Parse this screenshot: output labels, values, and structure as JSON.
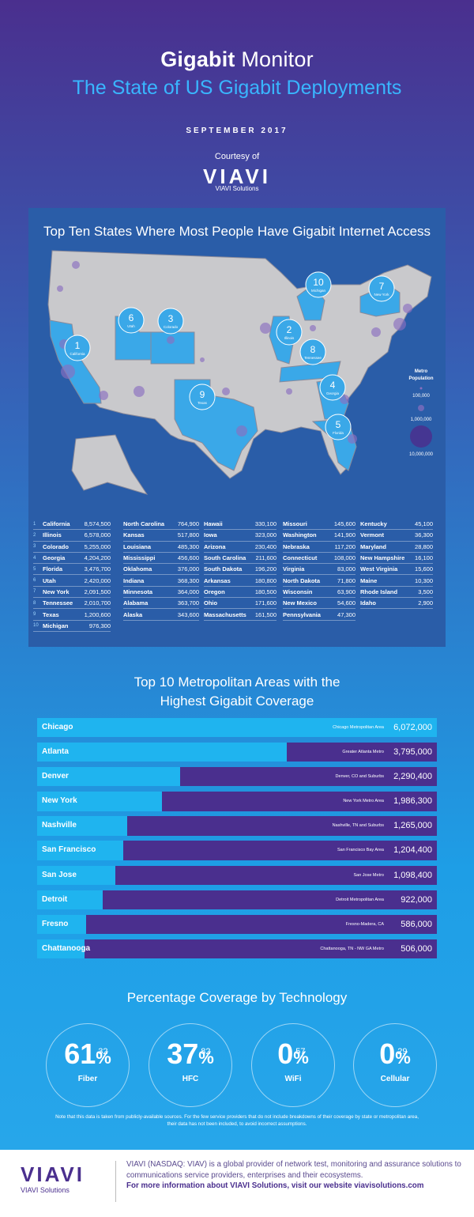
{
  "header": {
    "title_bold": "Gigabit",
    "title_rest": " Monitor",
    "subtitle": "The State of US Gigabit Deployments",
    "date": "SEPTEMBER 2017",
    "courtesy": "Courtesy of",
    "logo": "VIAVI",
    "logo_sub": "VIAVI Solutions"
  },
  "map": {
    "title": "Top Ten States Where Most People Have Gigabit Internet Access",
    "legend": {
      "title1": "Metro",
      "title2": "Population",
      "items": [
        "100,000",
        "1,000,000",
        "10,000,000"
      ]
    },
    "markers": [
      {
        "num": "1",
        "name": "California"
      },
      {
        "num": "2",
        "name": "Illinois"
      },
      {
        "num": "3",
        "name": "Colorado"
      },
      {
        "num": "4",
        "name": "Georgia"
      },
      {
        "num": "5",
        "name": "Florida"
      },
      {
        "num": "6",
        "name": "Utah"
      },
      {
        "num": "7",
        "name": "New York"
      },
      {
        "num": "8",
        "name": "Tennessee"
      },
      {
        "num": "9",
        "name": "Texas"
      },
      {
        "num": "10",
        "name": "Michigan"
      }
    ]
  },
  "state_table": {
    "col1": [
      {
        "n": "1",
        "s": "California",
        "v": "8,574,500"
      },
      {
        "n": "2",
        "s": "Illinois",
        "v": "6,578,000"
      },
      {
        "n": "3",
        "s": "Colorado",
        "v": "5,255,000"
      },
      {
        "n": "4",
        "s": "Georgia",
        "v": "4,204,200"
      },
      {
        "n": "5",
        "s": "Florida",
        "v": "3,476,700"
      },
      {
        "n": "6",
        "s": "Utah",
        "v": "2,420,000"
      },
      {
        "n": "7",
        "s": "New York",
        "v": "2,091,500"
      },
      {
        "n": "8",
        "s": "Tennessee",
        "v": "2,010,700"
      },
      {
        "n": "9",
        "s": "Texas",
        "v": "1,200,600"
      },
      {
        "n": "10",
        "s": "Michigan",
        "v": "976,300"
      }
    ],
    "col2": [
      {
        "s": "North Carolina",
        "v": "764,900"
      },
      {
        "s": "Kansas",
        "v": "517,800"
      },
      {
        "s": "Louisiana",
        "v": "485,300"
      },
      {
        "s": "Mississippi",
        "v": "456,600"
      },
      {
        "s": "Oklahoma",
        "v": "376,000"
      },
      {
        "s": "Indiana",
        "v": "368,300"
      },
      {
        "s": "Minnesota",
        "v": "364,000"
      },
      {
        "s": "Alabama",
        "v": "363,700"
      },
      {
        "s": "Alaska",
        "v": "343,600"
      }
    ],
    "col3": [
      {
        "s": "Hawaii",
        "v": "330,100"
      },
      {
        "s": "Iowa",
        "v": "323,000"
      },
      {
        "s": "Arizona",
        "v": "230,400"
      },
      {
        "s": "South Carolina",
        "v": "211,600"
      },
      {
        "s": "South Dakota",
        "v": "196,200"
      },
      {
        "s": "Arkansas",
        "v": "180,800"
      },
      {
        "s": "Oregon",
        "v": "180,500"
      },
      {
        "s": "Ohio",
        "v": "171,600"
      },
      {
        "s": "Massachusetts",
        "v": "161,500"
      }
    ],
    "col4": [
      {
        "s": "Missouri",
        "v": "145,600"
      },
      {
        "s": "Washington",
        "v": "141,900"
      },
      {
        "s": "Nebraska",
        "v": "117,200"
      },
      {
        "s": "Connecticut",
        "v": "108,000"
      },
      {
        "s": "Virginia",
        "v": "83,000"
      },
      {
        "s": "North Dakota",
        "v": "71,800"
      },
      {
        "s": "Wisconsin",
        "v": "63,900"
      },
      {
        "s": "New Mexico",
        "v": "54,600"
      },
      {
        "s": "Pennsylvania",
        "v": "47,300"
      }
    ],
    "col5": [
      {
        "s": "Kentucky",
        "v": "45,100"
      },
      {
        "s": "Vermont",
        "v": "36,300"
      },
      {
        "s": "Maryland",
        "v": "28,800"
      },
      {
        "s": "New Hampshire",
        "v": "16,100"
      },
      {
        "s": "West Virginia",
        "v": "15,600"
      },
      {
        "s": "Maine",
        "v": "10,300"
      },
      {
        "s": "Rhode Island",
        "v": "3,500"
      },
      {
        "s": "Idaho",
        "v": "2,900"
      }
    ]
  },
  "metro": {
    "title1": "Top 10 Metropolitan Areas with the",
    "title2": "Highest Gigabit Coverage"
  },
  "chart_data": {
    "type": "bar",
    "title": "Top 10 Metropolitan Areas with the Highest Gigabit Coverage",
    "categories": [
      "Chicago",
      "Atlanta",
      "Denver",
      "New York",
      "Nashville",
      "San Francisco",
      "San Jose",
      "Detroit",
      "Fresno",
      "Chattanooga"
    ],
    "descriptions": [
      "Chicago Metropolitan Area",
      "Greater Atlanta Metro",
      "Denver, CO and Suburbs",
      "New York Metro Area",
      "Nashville, TN and Suburbs",
      "San Francisco Bay Area",
      "San Jose Metro",
      "Detroit Metropolitan Area",
      "Fresno-Madera, CA",
      "Chattanooga, TN - NW GA Metro"
    ],
    "values": [
      6072000,
      3795000,
      2290400,
      1986300,
      1265000,
      1204400,
      1098400,
      922000,
      586000,
      506000
    ],
    "value_labels": [
      "6,072,000",
      "3,795,000",
      "2,290,400",
      "1,986,300",
      "1,265,000",
      "1,204,400",
      "1,098,400",
      "922,000",
      "586,000",
      "506,000"
    ],
    "xlim": [
      0,
      6072000
    ],
    "colors": {
      "fill": "#1fb4ef",
      "track": "#4a2f8e"
    }
  },
  "tech": {
    "title": "Percentage Coverage by Technology",
    "items": [
      {
        "whole": "61",
        "dec": ".32",
        "pct": "%",
        "label": "Fiber"
      },
      {
        "whole": "37",
        "dec": ".82",
        "pct": "%",
        "label": "HFC"
      },
      {
        "whole": "0",
        "dec": ".57",
        "pct": "%",
        "label": "WiFi"
      },
      {
        "whole": "0",
        "dec": ".29",
        "pct": "%",
        "label": "Cellular"
      }
    ]
  },
  "note": "Note that this data is taken from publicly-available sources. For the few service providers that do not include breakdowns of their coverage by state or metropolitan area, their data has not been included, to avoid incorrect assumptions.",
  "footer": {
    "logo": "VIAVI",
    "logo_sub": "VIAVI Solutions",
    "text": "VIAVI (NASDAQ: VIAV) is a global provider of network test, monitoring and assurance solutions to communications service providers, enterprises and their ecosystems.",
    "more": "For more information about VIAVI Solutions, visit our website viavisolutions.com"
  },
  "colors": {
    "purple": "#4a2f8e",
    "cyan": "#1fb4ef",
    "highlight_state": "#3aa8e8",
    "state": "#c8c8c8"
  }
}
